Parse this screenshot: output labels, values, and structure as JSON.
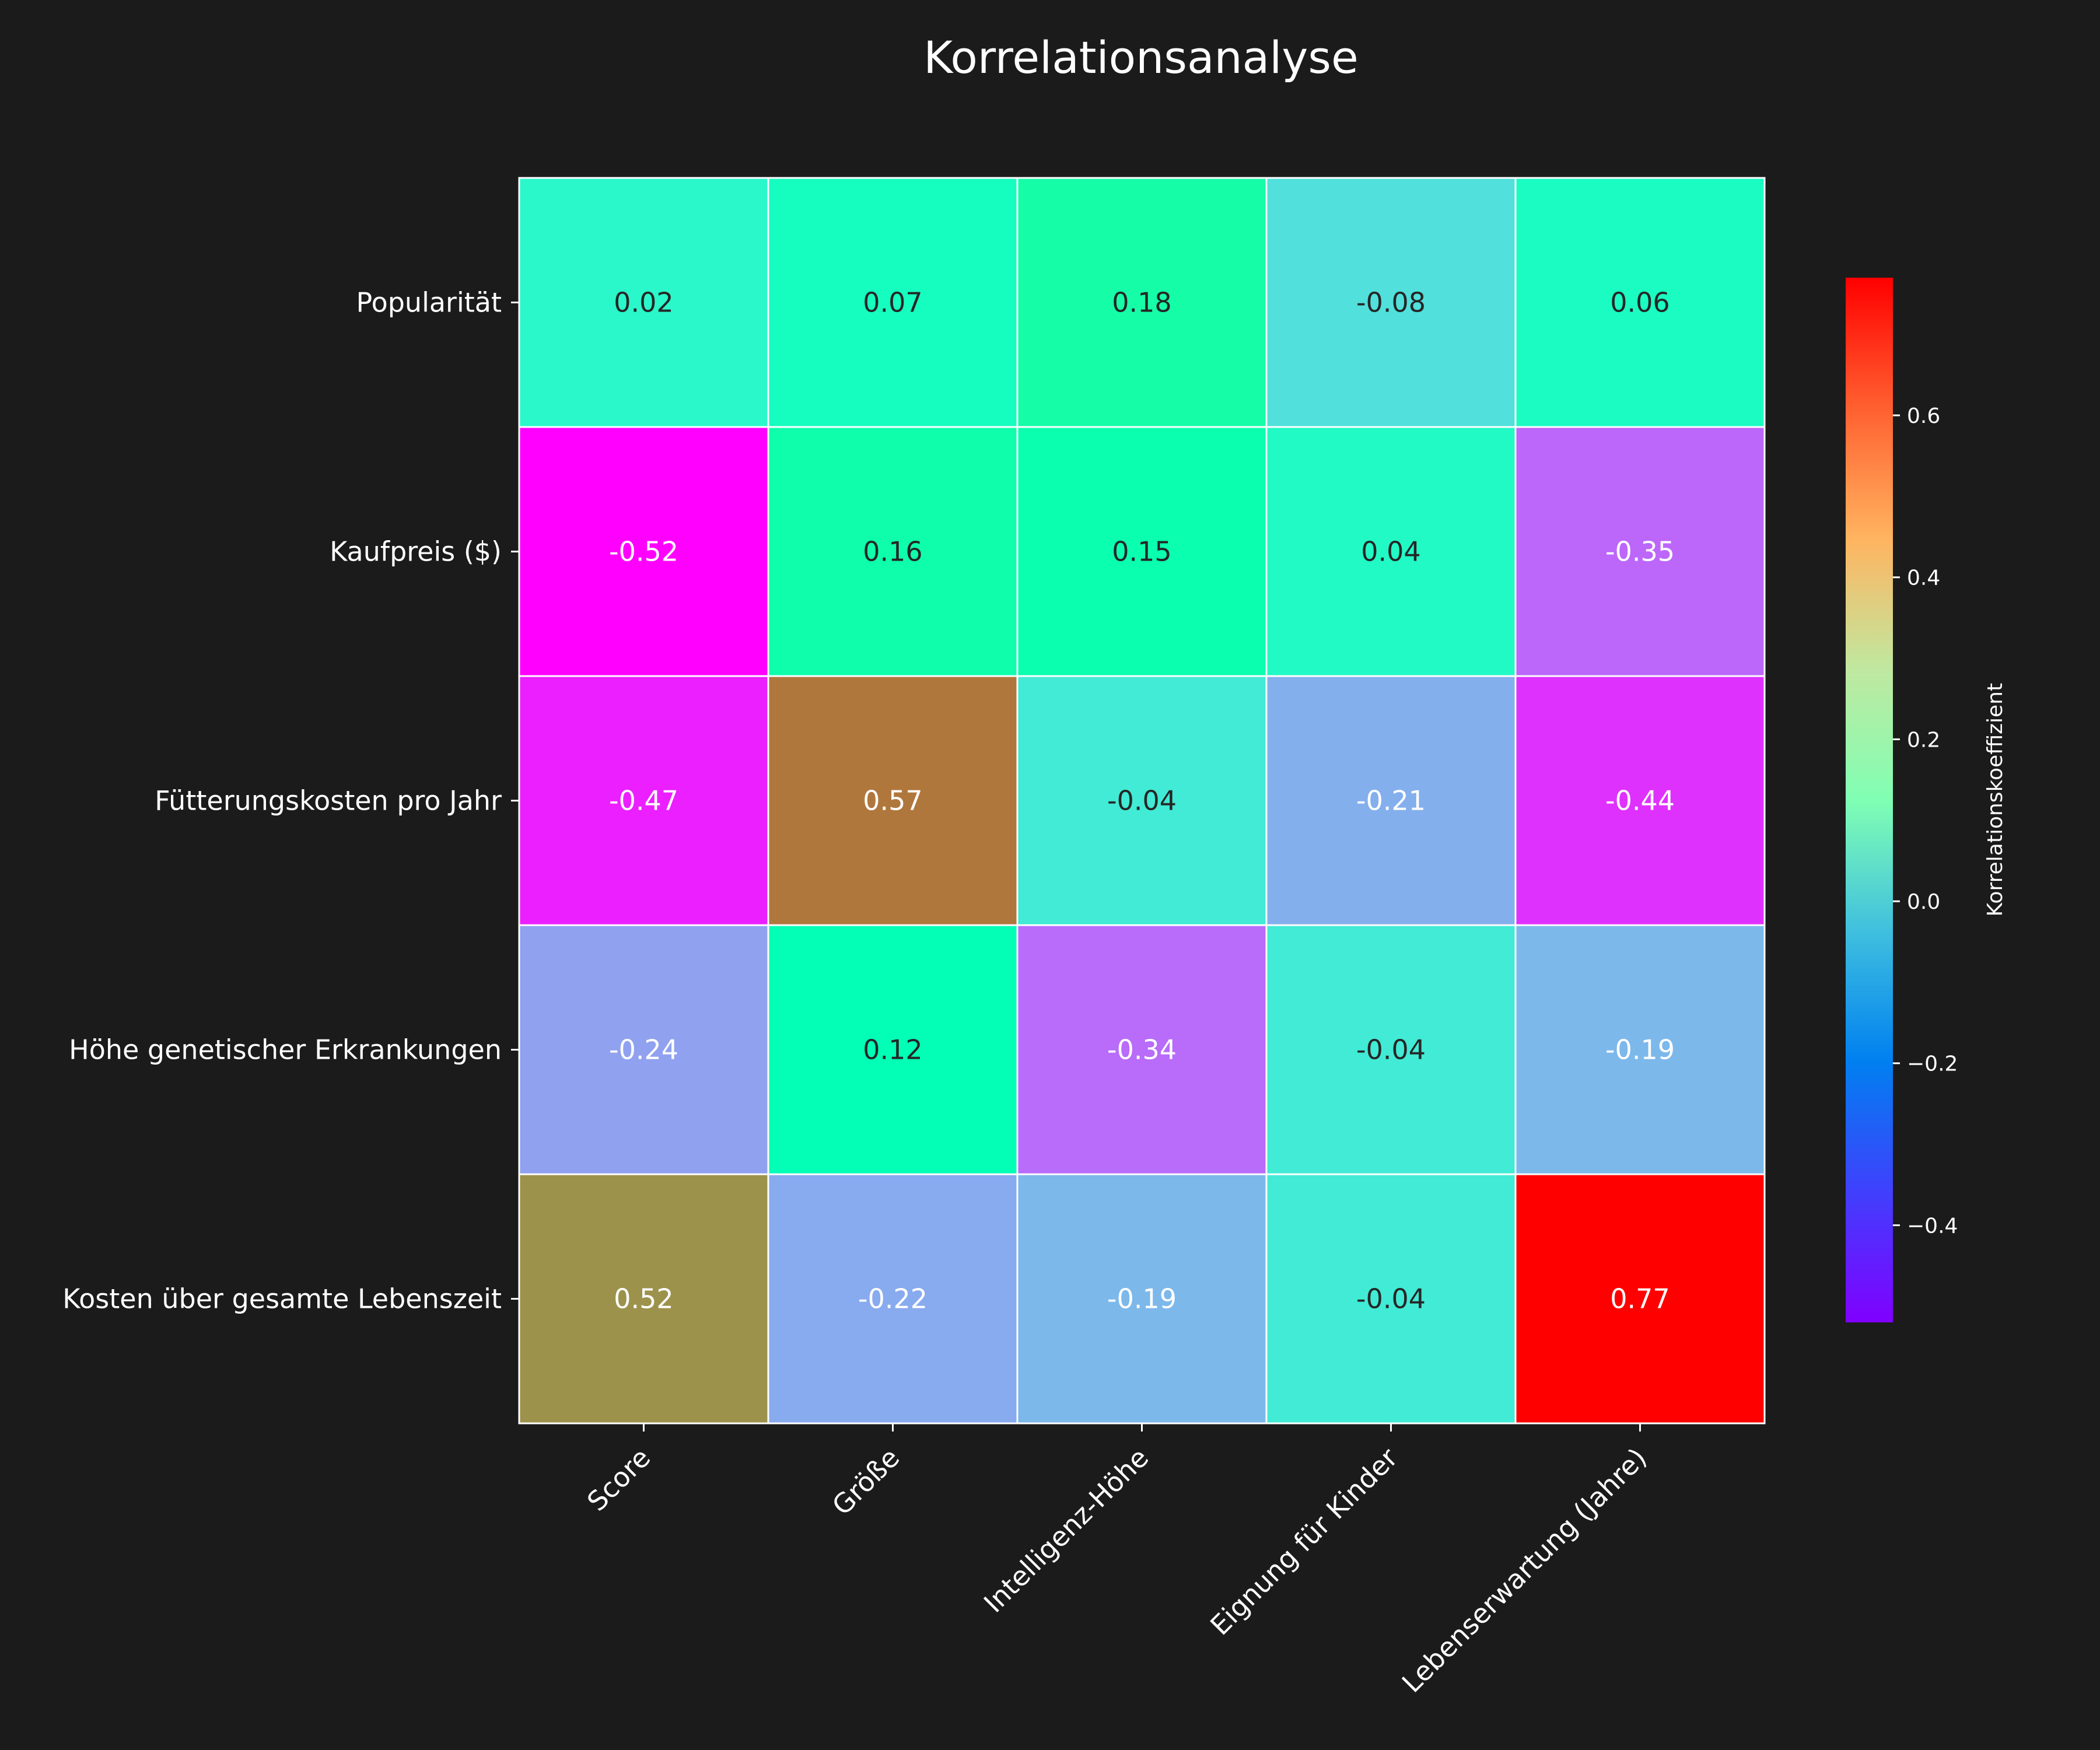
{
  "chart_data": {
    "type": "heatmap",
    "title": "Korrelationsanalyse",
    "rows": [
      "Popularität",
      "Kaufpreis ($)",
      "Fütterungskosten pro Jahr",
      "Höhe genetischer Erkrankungen",
      "Kosten über gesamte Lebenszeit"
    ],
    "columns": [
      "Score",
      "Größe",
      "Intelligenz-Höhe",
      "Eignung für Kinder",
      "Lebenserwartung (Jahre)"
    ],
    "values": [
      [
        0.02,
        0.07,
        0.18,
        -0.08,
        0.06
      ],
      [
        -0.52,
        0.16,
        0.15,
        0.04,
        -0.35
      ],
      [
        -0.47,
        0.57,
        -0.04,
        -0.21,
        -0.44
      ],
      [
        -0.24,
        0.12,
        -0.34,
        -0.04,
        -0.19
      ],
      [
        0.52,
        -0.22,
        -0.19,
        -0.04,
        0.77
      ]
    ],
    "value_labels": [
      [
        "0.02",
        "0.07",
        "0.18",
        "-0.08",
        "0.06"
      ],
      [
        "-0.52",
        "0.16",
        "0.15",
        "0.04",
        "-0.35"
      ],
      [
        "-0.47",
        "0.57",
        "-0.04",
        "-0.21",
        "-0.44"
      ],
      [
        "-0.24",
        "0.12",
        "-0.34",
        "-0.04",
        "-0.19"
      ],
      [
        "0.52",
        "-0.22",
        "-0.19",
        "-0.04",
        "0.77"
      ]
    ],
    "colormap": "rainbow",
    "vmin": -0.52,
    "vmax": 0.77,
    "colorbar": {
      "label": "Korrelationskoeffizient",
      "ticks": [
        -0.4,
        -0.2,
        0.0,
        0.2,
        0.4,
        0.6
      ],
      "tick_labels": [
        "−0.4",
        "−0.2",
        "0.0",
        "0.2",
        "0.4",
        "0.6"
      ],
      "placement": "right"
    },
    "grid_color": "#ffffff",
    "background": "#1b1b1b"
  }
}
